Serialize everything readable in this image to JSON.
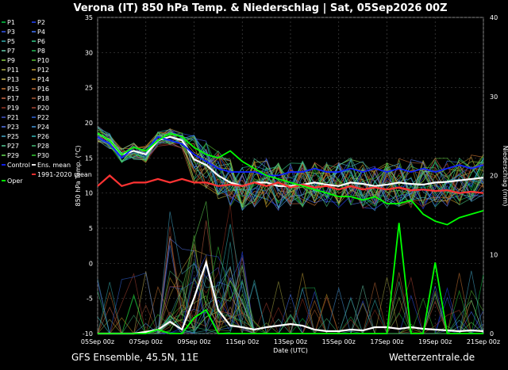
{
  "header": {
    "title": "Verona  (IT)  850 hPa Temp. & Niederschlag | Sat, 05Sep2026 00Z"
  },
  "footer": {
    "left": "GFS Ensemble, 45.5N, 11E",
    "right": "Wetterzentrale.de"
  },
  "legend": [
    {
      "label": "P1",
      "color": "#00cc44"
    },
    {
      "label": "P2",
      "color": "#2244ff"
    },
    {
      "label": "P3",
      "color": "#3355ee"
    },
    {
      "label": "P4",
      "color": "#4477ff"
    },
    {
      "label": "P5",
      "color": "#33aaaa"
    },
    {
      "label": "P6",
      "color": "#33cc88"
    },
    {
      "label": "P7",
      "color": "#66ccaa"
    },
    {
      "label": "P8",
      "color": "#22bb55"
    },
    {
      "label": "P9",
      "color": "#88cc44"
    },
    {
      "label": "P10",
      "color": "#55bb33"
    },
    {
      "label": "P11",
      "color": "#aaaa44"
    },
    {
      "label": "P12",
      "color": "#bb9933"
    },
    {
      "label": "P13",
      "color": "#ccbb55"
    },
    {
      "label": "P14",
      "color": "#cc9922"
    },
    {
      "label": "P15",
      "color": "#cc7733"
    },
    {
      "label": "P16",
      "color": "#bb6633"
    },
    {
      "label": "P17",
      "color": "#cc6644"
    },
    {
      "label": "P18",
      "color": "#aa5533"
    },
    {
      "label": "P19",
      "color": "#993322"
    },
    {
      "label": "P20",
      "color": "#aa4433"
    },
    {
      "label": "P21",
      "color": "#4455cc"
    },
    {
      "label": "P22",
      "color": "#3366dd"
    },
    {
      "label": "P23",
      "color": "#5577ee"
    },
    {
      "label": "P24",
      "color": "#4499dd"
    },
    {
      "label": "P25",
      "color": "#44aacc"
    },
    {
      "label": "P26",
      "color": "#33bbbb"
    },
    {
      "label": "P27",
      "color": "#55cc99"
    },
    {
      "label": "P28",
      "color": "#44bb77"
    },
    {
      "label": "P29",
      "color": "#66dd55"
    },
    {
      "label": "P30",
      "color": "#33cc33"
    },
    {
      "label": "Control",
      "color": "#1122ff"
    },
    {
      "label": "Ens. mean",
      "color": "#ffffff"
    },
    {
      "label": "1991-2020 mean",
      "color": "#ff3333"
    },
    {
      "label": "Oper",
      "color": "#00ff00"
    }
  ],
  "chart_data": {
    "type": "line",
    "title": "Verona  (IT)  850 hPa Temp. & Niederschlag | Sat, 05Sep2026 00Z",
    "xlabel": "Date (UTC)",
    "ylabel": "850 hPa Temp. (°C)",
    "y2label": "Niederschlag (mm)",
    "ylim": [
      -10,
      35
    ],
    "y2lim": [
      0,
      40
    ],
    "yticks": [
      "35",
      "30",
      "25",
      "20",
      "15",
      "10",
      "5",
      "0",
      "-5",
      "-10"
    ],
    "y2ticks": [
      "40",
      "30",
      "20",
      "10",
      "0"
    ],
    "xticks": [
      "05Sep 00z",
      "07Sep 00z",
      "09Sep 00z",
      "11Sep 00z",
      "13Sep 00z",
      "15Sep 00z",
      "17Sep 00z",
      "19Sep 00z",
      "21Sep 00z"
    ],
    "xlim_hours": [
      0,
      384
    ],
    "grid": true,
    "series": [
      {
        "name": "Ens. mean",
        "color": "#ffffff",
        "axis": "temp",
        "x": [
          0,
          12,
          24,
          36,
          48,
          60,
          72,
          84,
          96,
          108,
          120,
          132,
          144,
          156,
          168,
          180,
          192,
          204,
          216,
          228,
          240,
          252,
          264,
          276,
          288,
          300,
          312,
          324,
          336,
          348,
          360,
          372,
          384
        ],
        "y": [
          18.5,
          17.5,
          15.5,
          16.0,
          15.5,
          17.5,
          18.0,
          17.5,
          14.8,
          14.0,
          12.5,
          11.5,
          11.0,
          11.5,
          11.5,
          11.0,
          11.0,
          11.2,
          11.5,
          11.2,
          11.0,
          11.5,
          11.3,
          11.0,
          11.2,
          11.5,
          11.3,
          11.2,
          11.5,
          11.6,
          11.8,
          12.0,
          12.2
        ]
      },
      {
        "name": "1991-2020 mean",
        "color": "#ff3333",
        "axis": "temp",
        "x": [
          0,
          12,
          24,
          36,
          48,
          60,
          72,
          84,
          96,
          108,
          120,
          132,
          144,
          156,
          168,
          180,
          192,
          204,
          216,
          228,
          240,
          252,
          264,
          276,
          288,
          300,
          312,
          324,
          336,
          348,
          360,
          372,
          384
        ],
        "y": [
          11.0,
          12.5,
          11.0,
          11.5,
          11.5,
          12.0,
          11.5,
          12.0,
          11.5,
          11.5,
          11.0,
          11.2,
          11.0,
          11.5,
          11.0,
          11.5,
          10.8,
          11.2,
          10.8,
          11.0,
          10.5,
          11.0,
          10.5,
          10.8,
          10.5,
          10.8,
          10.4,
          10.5,
          10.3,
          10.4,
          10.0,
          10.2,
          10.0
        ]
      },
      {
        "name": "Control",
        "color": "#1122ff",
        "axis": "temp",
        "x": [
          0,
          12,
          24,
          36,
          48,
          60,
          72,
          84,
          96,
          108,
          120,
          132,
          144,
          156,
          168,
          180,
          192,
          204,
          216,
          228,
          240,
          252,
          264,
          276,
          288,
          300,
          312,
          324,
          336,
          348,
          360,
          372,
          384
        ],
        "y": [
          18.0,
          17.0,
          15.0,
          16.5,
          16.0,
          18.0,
          17.5,
          17.0,
          15.5,
          14.5,
          13.5,
          13.0,
          13.0,
          13.0,
          12.5,
          12.5,
          13.0,
          13.0,
          13.5,
          13.0,
          13.0,
          13.5,
          13.0,
          13.5,
          13.0,
          13.5,
          13.0,
          13.5,
          13.0,
          13.5,
          14.0,
          13.5,
          14.0
        ]
      },
      {
        "name": "Oper",
        "color": "#00ff00",
        "axis": "temp",
        "x": [
          0,
          12,
          24,
          36,
          48,
          60,
          72,
          84,
          96,
          108,
          120,
          132,
          144,
          156,
          168,
          180,
          192,
          204,
          216,
          228,
          240,
          252,
          264,
          276,
          288,
          300,
          312,
          324,
          336,
          348,
          360,
          372,
          384
        ],
        "y": [
          18.5,
          17.5,
          15.5,
          16.5,
          16.0,
          17.5,
          18.5,
          18.0,
          16.5,
          15.5,
          15.0,
          16.0,
          14.5,
          13.5,
          12.5,
          12.0,
          11.5,
          11.0,
          10.5,
          10.0,
          9.5,
          9.5,
          9.0,
          9.5,
          8.5,
          8.5,
          9.0,
          7.0,
          6.0,
          5.5,
          6.5,
          7.0,
          7.5
        ]
      },
      {
        "name": "Ens. mean precip",
        "color": "#ffffff",
        "axis": "precip",
        "x": [
          0,
          12,
          24,
          36,
          48,
          60,
          72,
          84,
          96,
          108,
          120,
          132,
          144,
          156,
          168,
          180,
          192,
          204,
          216,
          228,
          240,
          252,
          264,
          276,
          288,
          300,
          312,
          324,
          336,
          348,
          360,
          372,
          384
        ],
        "y": [
          0,
          0,
          0,
          0,
          0.2,
          0.5,
          1.5,
          0.5,
          4.5,
          9.0,
          3.0,
          1.0,
          0.8,
          0.5,
          0.8,
          1.0,
          1.2,
          1.0,
          0.5,
          0.3,
          0.3,
          0.5,
          0.4,
          0.8,
          0.8,
          0.6,
          0.8,
          0.6,
          0.5,
          0.4,
          0.3,
          0.4,
          0.3
        ]
      },
      {
        "name": "Oper precip",
        "color": "#00ff00",
        "axis": "precip",
        "x": [
          0,
          12,
          24,
          36,
          48,
          60,
          72,
          84,
          96,
          108,
          120,
          132,
          144,
          156,
          168,
          180,
          192,
          204,
          216,
          228,
          240,
          252,
          264,
          276,
          288,
          300,
          312,
          324,
          336,
          348,
          360,
          372,
          384
        ],
        "y": [
          0,
          0,
          0,
          0,
          0,
          0.5,
          0,
          0,
          2.0,
          3.0,
          0,
          0,
          0,
          0,
          0,
          0,
          0,
          0,
          0,
          0,
          0,
          0,
          0,
          0,
          0,
          14.0,
          0,
          0,
          9.0,
          0,
          0,
          0,
          0
        ]
      }
    ]
  }
}
